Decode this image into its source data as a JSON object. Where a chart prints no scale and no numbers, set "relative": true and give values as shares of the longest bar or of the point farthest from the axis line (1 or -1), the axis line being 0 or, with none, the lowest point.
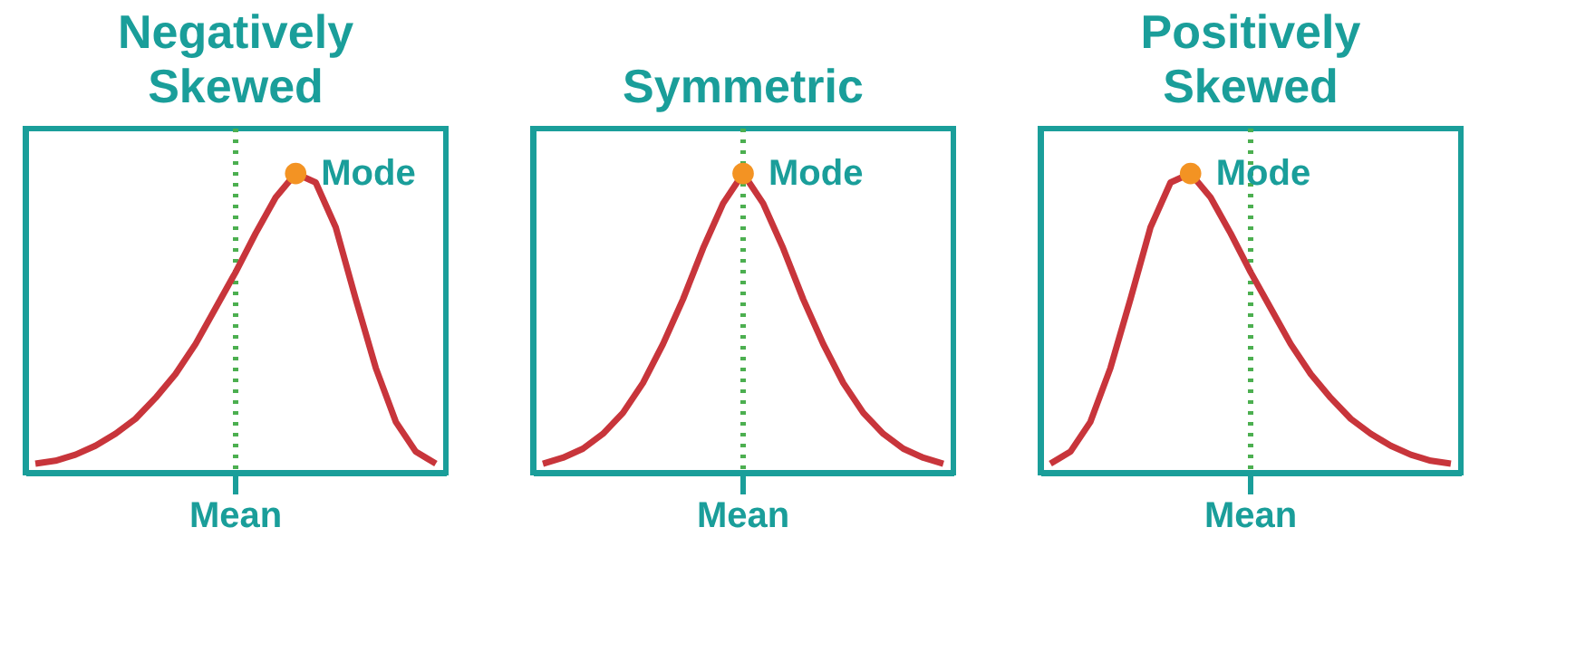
{
  "chart_data": [
    {
      "type": "line",
      "title": "Negatively Skewed",
      "relative": true,
      "marker": "none",
      "line_style": "solid",
      "categories": [
        null,
        null,
        null,
        null,
        null,
        null,
        null,
        null,
        null,
        null,
        null,
        null,
        null,
        null,
        null,
        null,
        null,
        null,
        null,
        null,
        null
      ],
      "series": [
        {
          "color": "#c8353b",
          "values": [
            0.03,
            0.04,
            0.06,
            0.09,
            0.13,
            0.18,
            0.25,
            0.33,
            0.43,
            0.55,
            0.67,
            0.8,
            0.92,
            1,
            0.97,
            0.82,
            0.58,
            0.35,
            0.17,
            0.07,
            0.03
          ]
        }
      ],
      "annotations": [
        "Mode",
        "Mean"
      ]
    },
    {
      "type": "line",
      "title": "Symmetric",
      "relative": true,
      "marker": "none",
      "line_style": "solid",
      "categories": [
        null,
        null,
        null,
        null,
        null,
        null,
        null,
        null,
        null,
        null,
        null,
        null,
        null,
        null,
        null,
        null,
        null,
        null,
        null,
        null,
        null
      ],
      "series": [
        {
          "color": "#c8353b",
          "values": [
            0.03,
            0.05,
            0.08,
            0.13,
            0.2,
            0.3,
            0.43,
            0.58,
            0.75,
            0.9,
            1,
            0.9,
            0.75,
            0.58,
            0.43,
            0.3,
            0.2,
            0.13,
            0.08,
            0.05,
            0.03
          ]
        }
      ],
      "annotations": [
        "Mode",
        "Mean"
      ]
    },
    {
      "type": "line",
      "title": "Positively Skewed",
      "relative": true,
      "marker": "none",
      "line_style": "solid",
      "categories": [
        null,
        null,
        null,
        null,
        null,
        null,
        null,
        null,
        null,
        null,
        null,
        null,
        null,
        null,
        null,
        null,
        null,
        null,
        null,
        null,
        null
      ],
      "series": [
        {
          "color": "#c8353b",
          "values": [
            0.03,
            0.07,
            0.17,
            0.35,
            0.58,
            0.82,
            0.97,
            1,
            0.92,
            0.8,
            0.67,
            0.55,
            0.43,
            0.33,
            0.25,
            0.18,
            0.13,
            0.09,
            0.06,
            0.04,
            0.03
          ]
        }
      ],
      "annotations": [
        "Mode",
        "Mean"
      ]
    }
  ]
}
